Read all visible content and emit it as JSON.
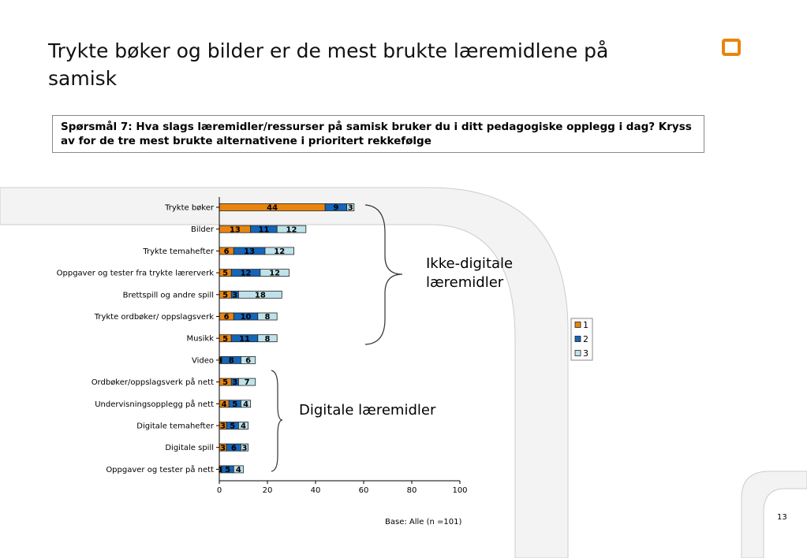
{
  "title": "Trykte bøker og bilder er de mest brukte læremidlene på samisk",
  "question": "Spørsmål 7: Hva slags læremidler/ressurser på samisk bruker du i ditt pedagogiske opplegg i dag?  Kryss av for de tre mest brukte alternativene i prioritert rekkefølge",
  "annotations": {
    "non_digital": "Ikke-digitale læremidler",
    "digital": "Digitale læremidler"
  },
  "base_note": "Base: Alle (n =101)",
  "page_number": "13",
  "colors": {
    "series1": "#e8850f",
    "series2": "#1565b8",
    "series3": "#bfe2ea",
    "accent": "#e8850f",
    "decor_grey": "#f3f3f3"
  },
  "chart_data": {
    "type": "bar",
    "orientation": "horizontal",
    "stacked": true,
    "categories": [
      "Trykte bøker",
      "Bilder",
      "Trykte temahefter",
      "Oppgaver og tester fra trykte lærerverk",
      "Brettspill og andre spill",
      "Trykte ordbøker/ oppslagsverk",
      "Musikk",
      "Video",
      "Ordbøker/oppslagsverk på nett",
      "Undervisningsopplegg på nett",
      "Digitale temahefter",
      "Digitale spill",
      "Oppgaver og tester på nett"
    ],
    "series": [
      {
        "name": "1",
        "values": [
          44,
          13,
          6,
          5,
          5,
          6,
          5,
          1,
          5,
          4,
          3,
          3,
          1
        ]
      },
      {
        "name": "2",
        "values": [
          9,
          11,
          13,
          12,
          3,
          10,
          11,
          8,
          3,
          5,
          5,
          6,
          5
        ]
      },
      {
        "name": "3",
        "values": [
          3,
          12,
          12,
          12,
          18,
          8,
          8,
          6,
          7,
          4,
          4,
          3,
          4
        ]
      }
    ],
    "xlim": [
      0,
      100
    ],
    "xticks": [
      0,
      20,
      40,
      60,
      80,
      100
    ],
    "legend": "right",
    "grid": false
  }
}
